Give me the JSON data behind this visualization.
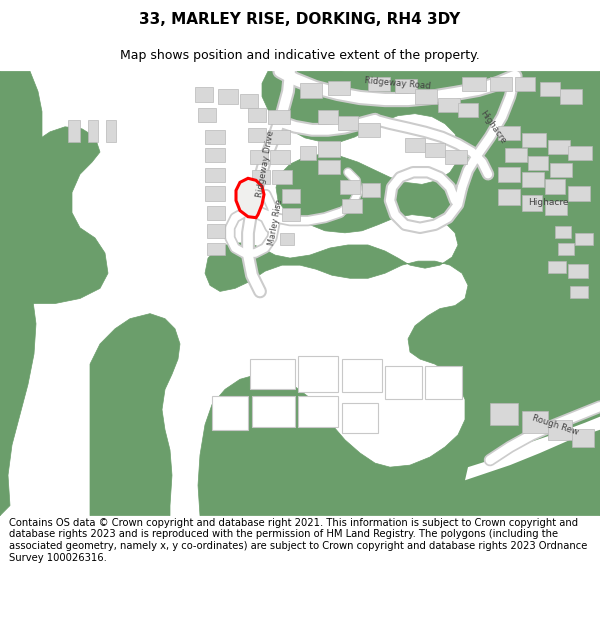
{
  "title": "33, MARLEY RISE, DORKING, RH4 3DY",
  "subtitle": "Map shows position and indicative extent of the property.",
  "footer": "Contains OS data © Crown copyright and database right 2021. This information is subject to Crown copyright and database rights 2023 and is reproduced with the permission of HM Land Registry. The polygons (including the associated geometry, namely x, y co-ordinates) are subject to Crown copyright and database rights 2023 Ordnance Survey 100026316.",
  "bg_color": "#ffffff",
  "map_bg": "#f5f5f3",
  "building_color": "#d8d8d8",
  "building_edge": "#b8b8b8",
  "green_color": "#6b9e6b",
  "light_green": "#b8d4b0",
  "highlight_color": "#ff0000",
  "title_fontsize": 11,
  "subtitle_fontsize": 9,
  "footer_fontsize": 7.2,
  "road_color": "#ffffff",
  "road_edge_color": "#cccccc"
}
